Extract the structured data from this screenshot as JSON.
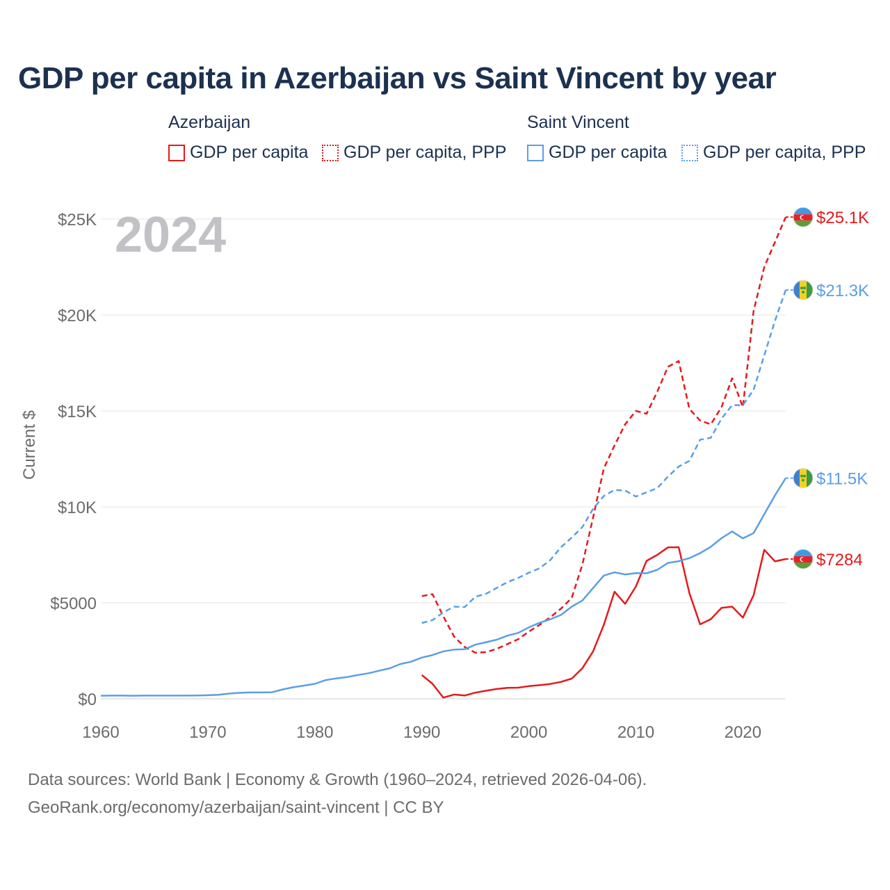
{
  "title": "GDP per capita in Azerbaijan vs Saint Vincent by year",
  "legend": {
    "groups": [
      {
        "name": "Azerbaijan",
        "color": "#e31a1c",
        "items": [
          "GDP per capita",
          "GDP per capita, PPP"
        ]
      },
      {
        "name": "Saint Vincent",
        "color": "#5b9ee6",
        "items": [
          "GDP per capita",
          "GDP per capita, PPP"
        ]
      }
    ]
  },
  "footer": {
    "line1": "Data sources: World Bank | Economy & Growth (1960–2024, retrieved 2026-04-06).",
    "line2": "GeoRank.org/economy/azerbaijan/saint-vincent | CC BY"
  },
  "chart_data": {
    "type": "line",
    "title": "GDP per capita in Azerbaijan vs Saint Vincent by year",
    "year_label": "2024",
    "ylabel": "Current $",
    "xlabel": "",
    "xlim": [
      1960,
      2024
    ],
    "ylim": [
      0,
      25000
    ],
    "x_ticks": [
      1960,
      1970,
      1980,
      1990,
      2000,
      2010,
      2020
    ],
    "x_tick_labels": [
      "1960",
      "1970",
      "1980",
      "1990",
      "2000",
      "2010",
      "2020"
    ],
    "y_ticks": [
      0,
      5000,
      10000,
      15000,
      20000,
      25000
    ],
    "y_tick_labels": [
      "$0",
      "$5000",
      "$10K",
      "$15K",
      "$20K",
      "$25K"
    ],
    "grid": true,
    "series": [
      {
        "name": "Azerbaijan GDP per capita",
        "country": "Azerbaijan",
        "color": "#e31a1c",
        "dash": "solid",
        "end_label": "$7284",
        "x": [
          1990,
          1991,
          1992,
          1993,
          1994,
          1995,
          1996,
          1997,
          1998,
          1999,
          2000,
          2001,
          2002,
          2003,
          2004,
          2005,
          2006,
          2007,
          2008,
          2009,
          2010,
          2011,
          2012,
          2013,
          2014,
          2015,
          2016,
          2017,
          2018,
          2019,
          2020,
          2021,
          2022,
          2023,
          2024
        ],
        "values": [
          1240,
          780,
          60,
          220,
          170,
          320,
          420,
          510,
          570,
          580,
          660,
          710,
          770,
          880,
          1050,
          1590,
          2470,
          3850,
          5580,
          4950,
          5850,
          7190,
          7500,
          7890,
          7900,
          5500,
          3880,
          4150,
          4740,
          4800,
          4230,
          5390,
          7760,
          7160,
          7284
        ]
      },
      {
        "name": "Azerbaijan GDP per capita, PPP",
        "country": "Azerbaijan",
        "color": "#e31a1c",
        "dash": "dashed",
        "end_label": "$25.1K",
        "x": [
          1990,
          1991,
          1992,
          1993,
          1994,
          1995,
          1996,
          1997,
          1998,
          1999,
          2000,
          2001,
          2002,
          2003,
          2004,
          2005,
          2006,
          2007,
          2008,
          2009,
          2010,
          2011,
          2012,
          2013,
          2014,
          2015,
          2016,
          2017,
          2018,
          2019,
          2020,
          2021,
          2022,
          2023,
          2024
        ],
        "values": [
          5350,
          5450,
          4300,
          3250,
          2700,
          2400,
          2430,
          2600,
          2850,
          3100,
          3500,
          3850,
          4250,
          4700,
          5250,
          7000,
          9450,
          12000,
          13200,
          14300,
          15000,
          14850,
          16000,
          17300,
          17600,
          15100,
          14500,
          14300,
          15200,
          16700,
          15200,
          20200,
          22500,
          23800,
          25100
        ]
      },
      {
        "name": "Saint Vincent GDP per capita",
        "country": "Saint Vincent",
        "color": "#5b9ee6",
        "dash": "solid",
        "end_label": "$11.5K",
        "x": [
          1960,
          1961,
          1962,
          1963,
          1964,
          1965,
          1966,
          1967,
          1968,
          1969,
          1970,
          1971,
          1972,
          1973,
          1974,
          1975,
          1976,
          1977,
          1978,
          1979,
          1980,
          1981,
          1982,
          1983,
          1984,
          1985,
          1986,
          1987,
          1988,
          1989,
          1990,
          1991,
          1992,
          1993,
          1994,
          1995,
          1996,
          1997,
          1998,
          1999,
          2000,
          2001,
          2002,
          2003,
          2004,
          2005,
          2006,
          2007,
          2008,
          2009,
          2010,
          2011,
          2012,
          2013,
          2014,
          2015,
          2016,
          2017,
          2018,
          2019,
          2020,
          2021,
          2022,
          2023,
          2024
        ],
        "values": [
          160,
          165,
          165,
          160,
          165,
          165,
          165,
          165,
          168,
          170,
          185,
          210,
          270,
          310,
          330,
          330,
          340,
          490,
          600,
          690,
          780,
          970,
          1060,
          1130,
          1240,
          1330,
          1460,
          1590,
          1810,
          1930,
          2150,
          2280,
          2470,
          2560,
          2580,
          2820,
          2950,
          3080,
          3290,
          3430,
          3720,
          3960,
          4140,
          4370,
          4800,
          5120,
          5770,
          6420,
          6590,
          6480,
          6550,
          6540,
          6720,
          7080,
          7170,
          7330,
          7590,
          7920,
          8370,
          8720,
          8360,
          8630,
          9620,
          10600,
          11500
        ]
      },
      {
        "name": "Saint Vincent GDP per capita, PPP",
        "country": "Saint Vincent",
        "color": "#5b9ee6",
        "dash": "dashed",
        "end_label": "$21.3K",
        "x": [
          1990,
          1991,
          1992,
          1993,
          1994,
          1995,
          1996,
          1997,
          1998,
          1999,
          2000,
          2001,
          2002,
          2003,
          2004,
          2005,
          2006,
          2007,
          2008,
          2009,
          2010,
          2011,
          2012,
          2013,
          2014,
          2015,
          2016,
          2017,
          2018,
          2019,
          2020,
          2021,
          2022,
          2023,
          2024
        ],
        "values": [
          3950,
          4100,
          4500,
          4800,
          4780,
          5320,
          5470,
          5780,
          6080,
          6300,
          6570,
          6800,
          7230,
          7900,
          8400,
          8950,
          9900,
          10570,
          10880,
          10850,
          10540,
          10760,
          10980,
          11580,
          12100,
          12400,
          13500,
          13600,
          14600,
          15300,
          15300,
          16100,
          17900,
          19700,
          21300
        ]
      }
    ]
  }
}
